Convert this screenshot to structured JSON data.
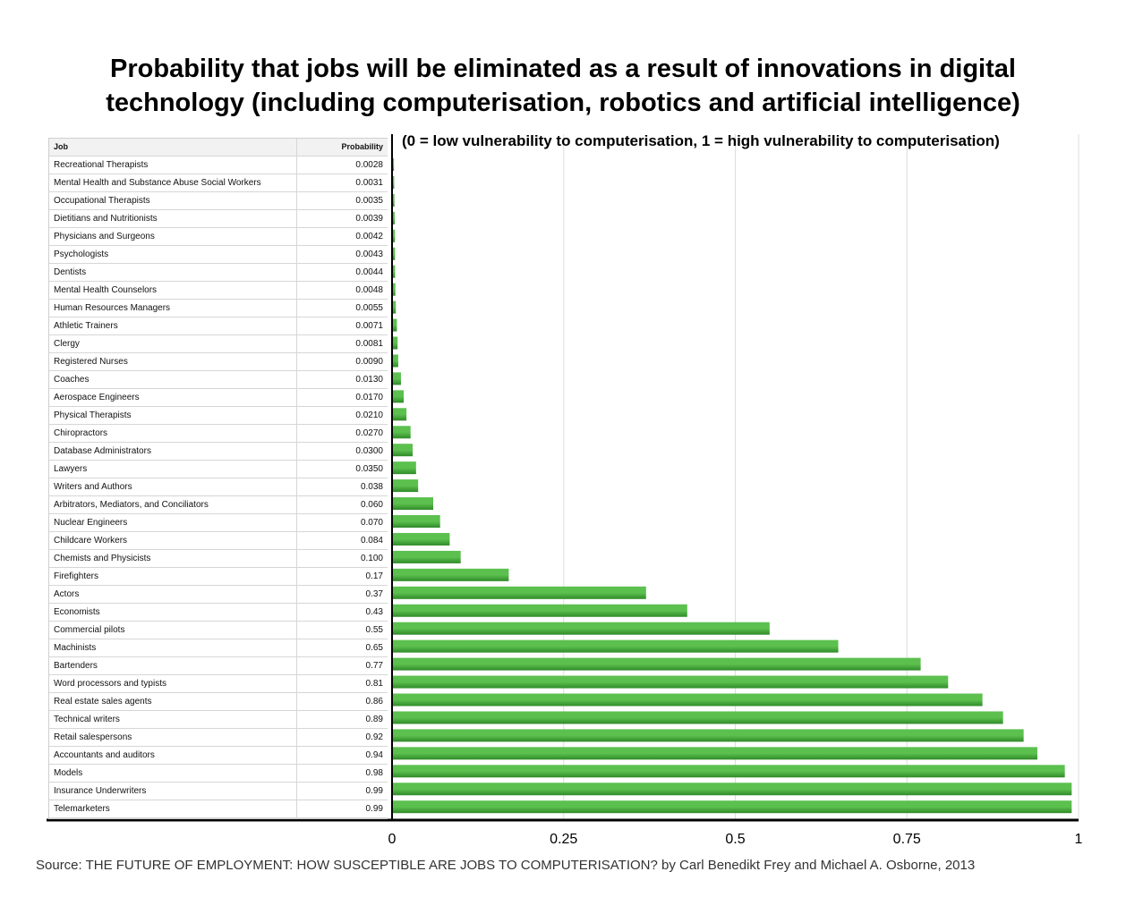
{
  "title_line1": "Probability that jobs will be eliminated as a result of innovations in digital",
  "title_line2": "technology (including computerisation, robotics and artificial intelligence)",
  "note": "(0 = low vulnerability to computerisation, 1 = high vulnerability to computerisation)",
  "source": "Source: THE FUTURE OF EMPLOYMENT: HOW SUSCEPTIBLE ARE JOBS TO COMPUTERISATION? by Carl Benedikt Frey and Michael A. Osborne, 2013",
  "table": {
    "col_job": "Job",
    "col_prob": "Probability"
  },
  "colors": {
    "bar_light": "#5cc04f",
    "bar_dark": "#2f8a28",
    "grid": "#dddddd",
    "axis": "#000000"
  },
  "chart_data": {
    "type": "bar",
    "orientation": "horizontal",
    "xlim": [
      0,
      1
    ],
    "xticks": [
      "0",
      "0.25",
      "0.5",
      "0.75",
      "1"
    ],
    "xtick_values": [
      0,
      0.25,
      0.5,
      0.75,
      1
    ],
    "grid": true,
    "categories": [
      "Recreational Therapists",
      "Mental Health and Substance Abuse Social Workers",
      "Occupational Therapists",
      "Dietitians and Nutritionists",
      "Physicians and Surgeons",
      "Psychologists",
      "Dentists",
      "Mental Health Counselors",
      "Human Resources Managers",
      "Athletic Trainers",
      "Clergy",
      "Registered Nurses",
      "Coaches",
      "Aerospace Engineers",
      "Physical Therapists",
      "Chiropractors",
      "Database Administrators",
      "Lawyers",
      "Writers and Authors",
      "Arbitrators, Mediators, and Conciliators",
      "Nuclear Engineers",
      "Childcare Workers",
      "Chemists and Physicists",
      "Firefighters",
      "Actors",
      "Economists",
      "Commercial pilots",
      "Machinists",
      "Bartenders",
      "Word processors and typists",
      "Real estate sales agents",
      "Technical writers",
      "Retail salespersons",
      "Accountants and auditors",
      "Models",
      "Insurance Underwriters",
      "Telemarketers"
    ],
    "labels": [
      "0.0028",
      "0.0031",
      "0.0035",
      "0.0039",
      "0.0042",
      "0.0043",
      "0.0044",
      "0.0048",
      "0.0055",
      "0.0071",
      "0.0081",
      "0.0090",
      "0.0130",
      "0.0170",
      "0.0210",
      "0.0270",
      "0.0300",
      "0.0350",
      "0.038",
      "0.060",
      "0.070",
      "0.084",
      "0.100",
      "0.17",
      "0.37",
      "0.43",
      "0.55",
      "0.65",
      "0.77",
      "0.81",
      "0.86",
      "0.89",
      "0.92",
      "0.94",
      "0.98",
      "0.99",
      "0.99"
    ],
    "values": [
      0.0028,
      0.0031,
      0.0035,
      0.0039,
      0.0042,
      0.0043,
      0.0044,
      0.0048,
      0.0055,
      0.0071,
      0.0081,
      0.009,
      0.013,
      0.017,
      0.021,
      0.027,
      0.03,
      0.035,
      0.038,
      0.06,
      0.07,
      0.084,
      0.1,
      0.17,
      0.37,
      0.43,
      0.55,
      0.65,
      0.77,
      0.81,
      0.86,
      0.89,
      0.92,
      0.94,
      0.98,
      0.99,
      0.99
    ]
  }
}
